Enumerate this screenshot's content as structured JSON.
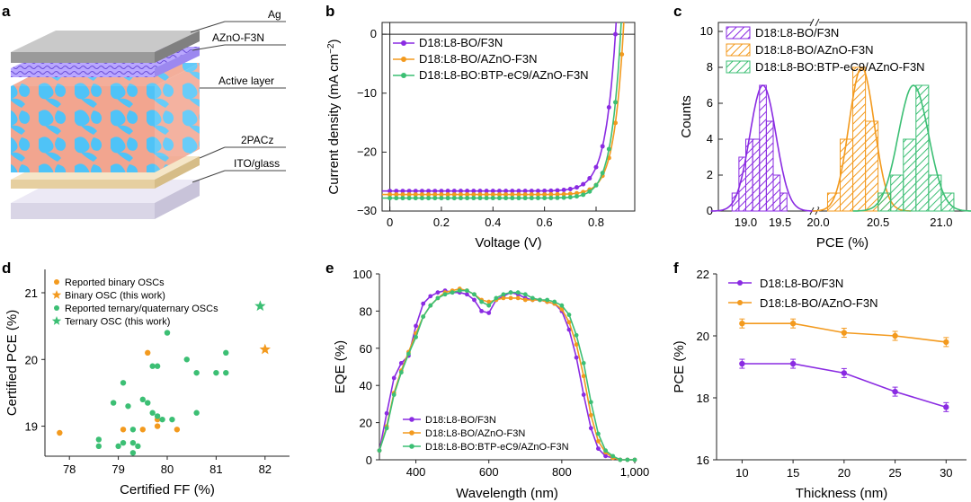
{
  "colors": {
    "purple": "#8a2be2",
    "orange": "#f39a1e",
    "green": "#3cbf74",
    "star_orange": "#f39a1e",
    "star_green": "#3cbf74"
  },
  "panel_letters": [
    "a",
    "b",
    "c",
    "d",
    "e",
    "f"
  ],
  "device_stack": {
    "layers": [
      "Ag",
      "AZnO-F3N",
      "Active layer",
      "2PACz",
      "ITO/glass"
    ]
  },
  "chart_data": [
    {
      "panel": "b",
      "type": "line",
      "xlabel": "Voltage (V)",
      "ylabel": "Current density (mA cm",
      "ylabel_sup": "−2",
      "ylabel_end": ")",
      "xlim": [
        -0.03,
        0.95
      ],
      "ylim": [
        -30,
        2
      ],
      "xticks": [
        0,
        0.2,
        0.4,
        0.6,
        0.8
      ],
      "xtick_labels": [
        "0",
        "0.2",
        "0.4",
        "0.6",
        "0.8"
      ],
      "yticks": [
        0,
        -10,
        -20,
        -30
      ],
      "ytick_labels": [
        "0",
        "−10",
        "−20",
        "−30"
      ],
      "legend": "top-left",
      "series": [
        {
          "name": "D18:L8-BO/F3N",
          "color": "#8a2be2",
          "jsc": -26.6,
          "voc": 0.875,
          "n": 1.55
        },
        {
          "name": "D18:L8-BO/AZnO-F3N",
          "color": "#f39a1e",
          "jsc": -27.2,
          "voc": 0.905,
          "n": 1.45
        },
        {
          "name": "D18:L8-BO:BTP-eC9/AZnO-F3N",
          "color": "#3cbf74",
          "jsc": -27.8,
          "voc": 0.895,
          "n": 1.45
        }
      ]
    },
    {
      "panel": "c",
      "type": "bar",
      "xlabel": "PCE (%)",
      "ylabel": "Counts",
      "ylim": [
        0,
        10.5
      ],
      "yticks": [
        0,
        2,
        4,
        6,
        8,
        10
      ],
      "ytick_labels": [
        "0",
        "2",
        "4",
        "6",
        "8",
        "10"
      ],
      "xtick_labels": [
        "19.0",
        "19.5",
        "20.0",
        "20.5",
        "21.0"
      ],
      "legend": "top-right",
      "series": [
        {
          "name": "D18:L8-BO/F3N",
          "color": "#8a2be2",
          "bins": [
            18.85,
            18.95,
            19.05,
            19.15,
            19.25,
            19.35,
            19.45,
            19.55
          ],
          "counts": [
            1,
            3,
            4,
            4,
            7,
            5,
            2,
            1
          ],
          "fit_mean": 19.25,
          "fit_sd": 0.19,
          "fit_peak": 7
        },
        {
          "name": "D18:L8-BO/AZnO-F3N",
          "color": "#f39a1e",
          "bins": [
            20.15,
            20.25,
            20.35,
            20.45,
            20.55
          ],
          "counts": [
            1,
            4,
            8,
            5,
            1
          ],
          "fit_mean": 20.37,
          "fit_sd": 0.1,
          "fit_peak": 8
        },
        {
          "name": "D18:L8-BO:BTP-eC9/AZnO-F3N",
          "color": "#3cbf74",
          "bins": [
            20.55,
            20.65,
            20.75,
            20.85,
            20.95,
            21.05
          ],
          "counts": [
            1,
            2,
            4,
            7,
            2,
            1
          ],
          "fit_mean": 20.78,
          "fit_sd": 0.12,
          "fit_peak": 7
        }
      ]
    },
    {
      "panel": "d",
      "type": "scatter",
      "xlabel": "Certified FF (%)",
      "ylabel": "Certified PCE (%)",
      "xlim": [
        77.5,
        82.5
      ],
      "ylim": [
        18.55,
        21.35
      ],
      "xticks": [
        78,
        79,
        80,
        81,
        82
      ],
      "xtick_labels": [
        "78",
        "79",
        "80",
        "81",
        "82"
      ],
      "yticks": [
        19,
        20,
        21
      ],
      "ytick_labels": [
        "19",
        "20",
        "21"
      ],
      "legend": "top-left",
      "series": [
        {
          "name": "Reported binary OSCs",
          "marker": "circle",
          "color": "#f39a1e",
          "points": [
            [
              77.8,
              18.9
            ],
            [
              79.1,
              18.95
            ],
            [
              79.5,
              18.95
            ],
            [
              79.8,
              19.0
            ],
            [
              80.2,
              18.95
            ],
            [
              79.6,
              20.1
            ],
            [
              79.8,
              19.1
            ]
          ]
        },
        {
          "name": "Binary OSC (this work)",
          "marker": "star",
          "color": "#f39a1e",
          "points": [
            [
              82.0,
              20.15
            ]
          ]
        },
        {
          "name": "Reported ternary/quaternary OSCs",
          "marker": "circle",
          "color": "#3cbf74",
          "points": [
            [
              78.6,
              18.8
            ],
            [
              78.6,
              18.7
            ],
            [
              79.0,
              18.7
            ],
            [
              79.1,
              18.75
            ],
            [
              79.3,
              18.6
            ],
            [
              79.3,
              18.75
            ],
            [
              79.4,
              18.7
            ],
            [
              79.2,
              19.3
            ],
            [
              79.6,
              19.35
            ],
            [
              79.7,
              19.2
            ],
            [
              79.8,
              19.15
            ],
            [
              80.1,
              19.1
            ],
            [
              78.9,
              19.35
            ],
            [
              79.1,
              19.65
            ],
            [
              79.5,
              19.4
            ],
            [
              79.8,
              19.9
            ],
            [
              79.7,
              19.9
            ],
            [
              80.0,
              20.4
            ],
            [
              80.4,
              20.0
            ],
            [
              80.6,
              19.8
            ],
            [
              80.6,
              19.2
            ],
            [
              81.0,
              19.8
            ],
            [
              81.2,
              19.8
            ],
            [
              81.2,
              20.1
            ],
            [
              79.9,
              19.1
            ],
            [
              79.3,
              18.95
            ]
          ]
        },
        {
          "name": "Ternary OSC (this work)",
          "marker": "star",
          "color": "#3cbf74",
          "points": [
            [
              81.9,
              20.8
            ]
          ]
        }
      ]
    },
    {
      "panel": "e",
      "type": "line",
      "xlabel": "Wavelength (nm)",
      "ylabel": "EQE (%)",
      "xlim": [
        300,
        1000
      ],
      "ylim": [
        0,
        100
      ],
      "xticks": [
        400,
        600,
        800,
        1000
      ],
      "xtick_labels": [
        "400",
        "600",
        "800",
        "1,000"
      ],
      "yticks": [
        0,
        20,
        40,
        60,
        80,
        100
      ],
      "ytick_labels": [
        "0",
        "20",
        "40",
        "60",
        "80",
        "100"
      ],
      "legend": "bottom-left",
      "x": [
        300,
        320,
        340,
        360,
        380,
        400,
        420,
        440,
        460,
        480,
        500,
        520,
        540,
        560,
        580,
        600,
        620,
        640,
        660,
        680,
        700,
        720,
        740,
        760,
        780,
        800,
        820,
        840,
        860,
        880,
        900,
        920,
        940,
        960,
        980,
        1000
      ],
      "series": [
        {
          "name": "D18:L8-BO/F3N",
          "color": "#8a2be2",
          "values": [
            5,
            25,
            44,
            52,
            56,
            72,
            84,
            88,
            90,
            91,
            90,
            90,
            89,
            86,
            80,
            79,
            86,
            88,
            90,
            89,
            87,
            86,
            86,
            85,
            84,
            80,
            70,
            55,
            35,
            17,
            6,
            2,
            1,
            0,
            0,
            0
          ]
        },
        {
          "name": "D18:L8-BO/AZnO-F3N",
          "color": "#f39a1e",
          "values": [
            5,
            18,
            36,
            48,
            58,
            68,
            77,
            83,
            87,
            90,
            91,
            92,
            91,
            89,
            86,
            85,
            86,
            87,
            87,
            87,
            86,
            86,
            86,
            85,
            84,
            81,
            74,
            62,
            45,
            24,
            10,
            4,
            1,
            0,
            0,
            0
          ]
        },
        {
          "name": "D18:L8-BO:BTP-eC9/AZnO-F3N",
          "color": "#3cbf74",
          "values": [
            5,
            17,
            35,
            47,
            57,
            66,
            77,
            83,
            87,
            89,
            90,
            91,
            91,
            89,
            85,
            83,
            87,
            89,
            90,
            90,
            89,
            87,
            86,
            86,
            85,
            83,
            78,
            67,
            52,
            31,
            14,
            5,
            2,
            0,
            0,
            0
          ]
        }
      ]
    },
    {
      "panel": "f",
      "type": "line",
      "xlabel": "Thickness (nm)",
      "ylabel": "PCE (%)",
      "xlim": [
        7.5,
        32
      ],
      "ylim": [
        16,
        22
      ],
      "xticks": [
        10,
        15,
        20,
        25,
        30
      ],
      "xtick_labels": [
        "10",
        "15",
        "20",
        "25",
        "30"
      ],
      "yticks": [
        16,
        18,
        20,
        22
      ],
      "ytick_labels": [
        "16",
        "18",
        "20",
        "22"
      ],
      "legend": "top-left",
      "x": [
        10,
        15,
        20,
        25,
        30
      ],
      "series": [
        {
          "name": "D18:L8-BO/F3N",
          "color": "#8a2be2",
          "values": [
            19.1,
            19.1,
            18.8,
            18.2,
            17.7
          ]
        },
        {
          "name": "D18:L8-BO/AZnO-F3N",
          "color": "#f39a1e",
          "values": [
            20.4,
            20.4,
            20.1,
            20.0,
            19.8
          ]
        }
      ]
    }
  ]
}
